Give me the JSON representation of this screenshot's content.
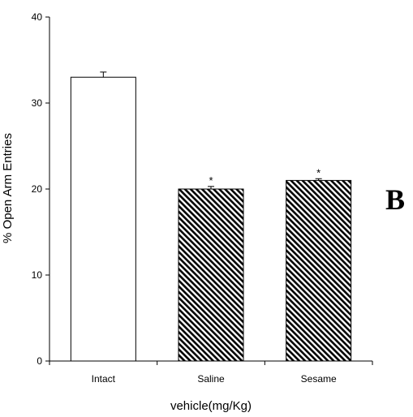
{
  "panel_label": "B",
  "chart_data": {
    "type": "bar",
    "title": "",
    "xlabel": "vehicle(mg/Kg)",
    "ylabel": "% Open Arm Entries",
    "ylim": [
      0,
      40
    ],
    "yticks": [
      0,
      10,
      20,
      30,
      40
    ],
    "grid": false,
    "categories": [
      "Intact",
      "Saline",
      "Sesame"
    ],
    "values": [
      33,
      20,
      21
    ],
    "errors": [
      0.6,
      0.3,
      0.2
    ],
    "significance": [
      "",
      "*",
      "*"
    ],
    "bar_fills": [
      "white",
      "diagonal-hatch",
      "diagonal-hatch"
    ],
    "colors": {
      "bar_stroke": "#000000",
      "hatch": "#000000",
      "background": "#ffffff"
    }
  }
}
